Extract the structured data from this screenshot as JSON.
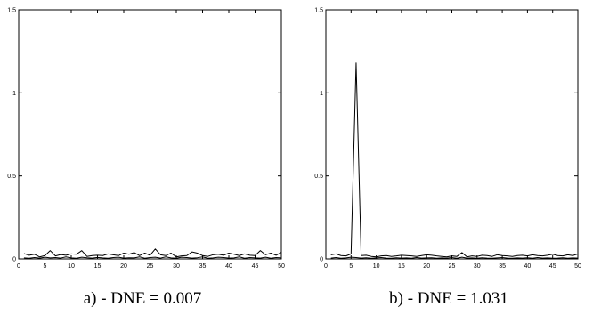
{
  "chart_data": [
    {
      "type": "line",
      "title": "",
      "caption": "a) - DNE = 0.007",
      "xlabel": "",
      "ylabel": "",
      "xlim": [
        0,
        50
      ],
      "ylim": [
        0,
        1.5
      ],
      "xticks": [
        "0",
        "5",
        "10",
        "15",
        "20",
        "25",
        "30",
        "35",
        "40",
        "45",
        "50"
      ],
      "yticks": [
        "0",
        "0.5",
        "1",
        "1.5"
      ],
      "grid": false,
      "series": [
        {
          "x": [
            1,
            2,
            3,
            4,
            5,
            6,
            7,
            8,
            9,
            10,
            11,
            12,
            13,
            14,
            15,
            16,
            17,
            18,
            19,
            20,
            21,
            22,
            23,
            24,
            25,
            26,
            27,
            28,
            29,
            30,
            31,
            32,
            33,
            34,
            35,
            36,
            37,
            38,
            39,
            40,
            41,
            42,
            43,
            44,
            45,
            46,
            47,
            48,
            49,
            50
          ],
          "y": [
            0.032,
            0.022,
            0.028,
            0.012,
            0.02,
            0.05,
            0.018,
            0.026,
            0.022,
            0.03,
            0.028,
            0.05,
            0.015,
            0.02,
            0.022,
            0.02,
            0.03,
            0.025,
            0.02,
            0.035,
            0.028,
            0.038,
            0.02,
            0.035,
            0.022,
            0.06,
            0.025,
            0.02,
            0.035,
            0.012,
            0.018,
            0.02,
            0.042,
            0.035,
            0.02,
            0.015,
            0.025,
            0.028,
            0.022,
            0.035,
            0.028,
            0.02,
            0.03,
            0.022,
            0.02,
            0.05,
            0.025,
            0.035,
            0.022,
            0.04
          ]
        },
        {
          "x": [
            1,
            2,
            3,
            4,
            5,
            6,
            7,
            8,
            9,
            10,
            11,
            12,
            13,
            14,
            15,
            16,
            17,
            18,
            19,
            20,
            21,
            22,
            23,
            24,
            25,
            26,
            27,
            28,
            29,
            30,
            31,
            32,
            33,
            34,
            35,
            36,
            37,
            38,
            39,
            40,
            41,
            42,
            43,
            44,
            45,
            46,
            47,
            48,
            49,
            50
          ],
          "y": [
            0.006,
            0.004,
            0.008,
            0.005,
            0.01,
            0.006,
            0.008,
            0.005,
            0.012,
            0.006,
            0.004,
            0.01,
            0.007,
            0.005,
            0.009,
            0.006,
            0.004,
            0.008,
            0.01,
            0.005,
            0.007,
            0.006,
            0.012,
            0.004,
            0.008,
            0.01,
            0.005,
            0.012,
            0.006,
            0.004,
            0.01,
            0.008,
            0.005,
            0.007,
            0.012,
            0.004,
            0.006,
            0.01,
            0.008,
            0.005,
            0.006,
            0.012,
            0.004,
            0.008,
            0.006,
            0.005,
            0.01,
            0.004,
            0.008,
            0.006
          ]
        }
      ]
    },
    {
      "type": "line",
      "title": "",
      "caption": "b) - DNE = 1.031",
      "xlabel": "",
      "ylabel": "",
      "xlim": [
        0,
        50
      ],
      "ylim": [
        0,
        1.5
      ],
      "xticks": [
        "0",
        "5",
        "10",
        "15",
        "20",
        "25",
        "30",
        "35",
        "40",
        "45",
        "50"
      ],
      "yticks": [
        "0",
        "0.5",
        "1",
        "1.5"
      ],
      "grid": false,
      "series": [
        {
          "x": [
            1,
            2,
            3,
            4,
            5,
            6,
            7,
            8,
            9,
            10,
            11,
            12,
            13,
            14,
            15,
            16,
            17,
            18,
            19,
            20,
            21,
            22,
            23,
            24,
            25,
            26,
            27,
            28,
            29,
            30,
            31,
            32,
            33,
            34,
            35,
            36,
            37,
            38,
            39,
            40,
            41,
            42,
            43,
            44,
            45,
            46,
            47,
            48,
            49,
            50
          ],
          "y": [
            0.025,
            0.03,
            0.02,
            0.018,
            0.03,
            1.18,
            0.02,
            0.022,
            0.015,
            0.012,
            0.018,
            0.02,
            0.015,
            0.018,
            0.022,
            0.02,
            0.018,
            0.015,
            0.02,
            0.025,
            0.022,
            0.018,
            0.015,
            0.012,
            0.018,
            0.015,
            0.038,
            0.012,
            0.018,
            0.015,
            0.022,
            0.02,
            0.015,
            0.025,
            0.02,
            0.018,
            0.015,
            0.02,
            0.022,
            0.018,
            0.025,
            0.02,
            0.018,
            0.022,
            0.028,
            0.02,
            0.018,
            0.025,
            0.02,
            0.03
          ]
        },
        {
          "x": [
            1,
            2,
            3,
            4,
            5,
            6,
            7,
            8,
            9,
            10,
            11,
            12,
            13,
            14,
            15,
            16,
            17,
            18,
            19,
            20,
            21,
            22,
            23,
            24,
            25,
            26,
            27,
            28,
            29,
            30,
            31,
            32,
            33,
            34,
            35,
            36,
            37,
            38,
            39,
            40,
            41,
            42,
            43,
            44,
            45,
            46,
            47,
            48,
            49,
            50
          ],
          "y": [
            0.005,
            0.008,
            0.004,
            0.006,
            0.01,
            0.008,
            0.005,
            0.007,
            0.004,
            0.006,
            0.008,
            0.005,
            0.004,
            0.007,
            0.005,
            0.006,
            0.004,
            0.008,
            0.005,
            0.006,
            0.007,
            0.004,
            0.006,
            0.005,
            0.008,
            0.004,
            0.01,
            0.005,
            0.006,
            0.004,
            0.007,
            0.005,
            0.004,
            0.006,
            0.008,
            0.005,
            0.004,
            0.006,
            0.005,
            0.007,
            0.004,
            0.008,
            0.005,
            0.006,
            0.004,
            0.005,
            0.007,
            0.004,
            0.006,
            0.005
          ]
        }
      ]
    }
  ]
}
